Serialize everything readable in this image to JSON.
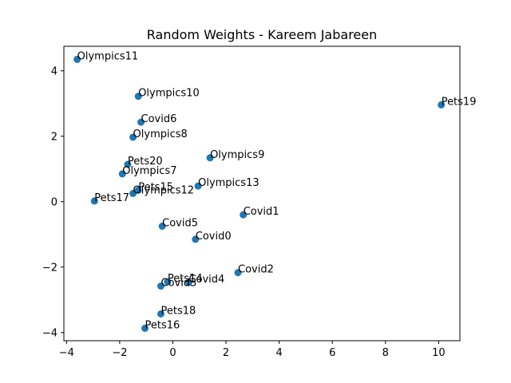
{
  "chart_data": {
    "type": "scatter",
    "title": "Random Weights - Kareem Jabareen",
    "xlabel": "",
    "ylabel": "",
    "xlim": [
      -4.1,
      10.8
    ],
    "ylim": [
      -4.25,
      4.75
    ],
    "xticks": [
      -4,
      -2,
      0,
      2,
      4,
      6,
      8,
      10
    ],
    "yticks": [
      -4,
      -2,
      0,
      2,
      4
    ],
    "grid": false,
    "marker_color": "#1f77b4",
    "points": [
      {
        "label": "Olympics11",
        "x": -3.6,
        "y": 4.35
      },
      {
        "label": "Olympics10",
        "x": -1.3,
        "y": 3.22
      },
      {
        "label": "Covid6",
        "x": -1.2,
        "y": 2.43
      },
      {
        "label": "Olympics8",
        "x": -1.5,
        "y": 1.97
      },
      {
        "label": "Pets20",
        "x": -1.7,
        "y": 1.14
      },
      {
        "label": "Olympics7",
        "x": -1.9,
        "y": 0.85
      },
      {
        "label": "Pets15",
        "x": -1.3,
        "y": 0.35
      },
      {
        "label": "Olympics12",
        "x": -1.5,
        "y": 0.25
      },
      {
        "label": "Pets17",
        "x": -2.95,
        "y": 0.02
      },
      {
        "label": "Olympics9",
        "x": 1.4,
        "y": 1.34
      },
      {
        "label": "Olympics13",
        "x": 0.95,
        "y": 0.48
      },
      {
        "label": "Covid1",
        "x": 2.65,
        "y": -0.4
      },
      {
        "label": "Covid5",
        "x": -0.4,
        "y": -0.75
      },
      {
        "label": "Covid0",
        "x": 0.85,
        "y": -1.15
      },
      {
        "label": "Covid2",
        "x": 2.45,
        "y": -2.17
      },
      {
        "label": "Pets14",
        "x": -0.2,
        "y": -2.45
      },
      {
        "label": "Covid4",
        "x": 0.6,
        "y": -2.47
      },
      {
        "label": "Covid3",
        "x": -0.45,
        "y": -2.58
      },
      {
        "label": "Pets18",
        "x": -0.45,
        "y": -3.43
      },
      {
        "label": "Pets16",
        "x": -1.05,
        "y": -3.87
      },
      {
        "label": "Pets19",
        "x": 10.1,
        "y": 2.96
      }
    ]
  }
}
